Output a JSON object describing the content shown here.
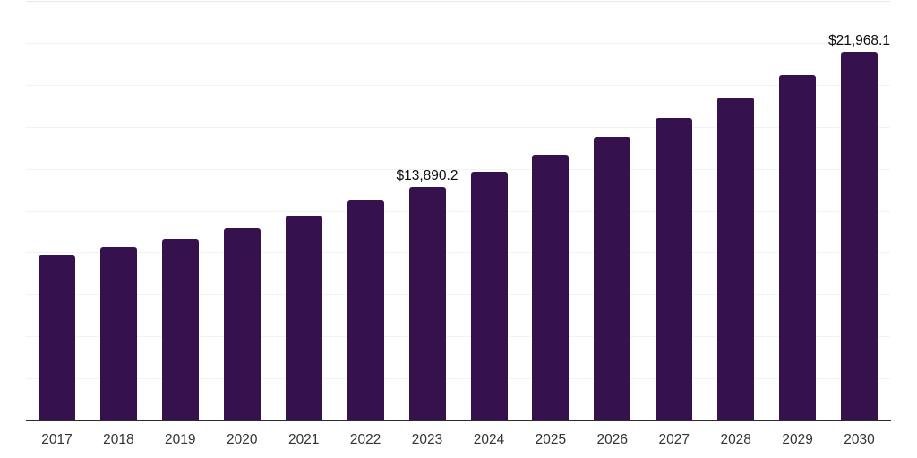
{
  "chart_data": {
    "type": "bar",
    "title": "",
    "xlabel": "",
    "ylabel": "",
    "categories": [
      "2017",
      "2018",
      "2019",
      "2020",
      "2021",
      "2022",
      "2023",
      "2024",
      "2025",
      "2026",
      "2027",
      "2028",
      "2029",
      "2030"
    ],
    "values": [
      9850,
      10340,
      10830,
      11460,
      12210,
      13110,
      13890.2,
      14830,
      15830,
      16900,
      18040,
      19250,
      20570,
      21968.1
    ],
    "data_labels": [
      {
        "index": 6,
        "text": "$13,890.2"
      },
      {
        "index": 13,
        "text": "$21,968.1"
      }
    ],
    "ylim": [
      0,
      25000
    ],
    "grid_step": 2500,
    "grid": true,
    "legend": false,
    "bar_color": "#35124E",
    "gridline_color": "#f2f2f2",
    "top_gridline_color": "#e7e7e7",
    "axis_line_color": "#2b2b2b",
    "tick_label_color": "#333333",
    "data_label_color": "#0b0b0b"
  }
}
